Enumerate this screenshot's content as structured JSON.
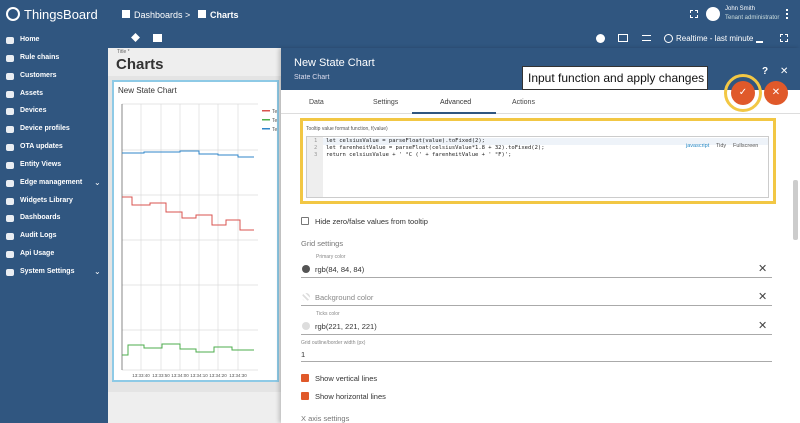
{
  "top_bar": {
    "logo": "ThingsBoard",
    "breadcrumb": [
      "Dashboards",
      ">",
      "Charts"
    ],
    "user_name": "John Smith",
    "user_role": "Tenant administrator"
  },
  "sidebar": {
    "items": [
      "Home",
      "Rule chains",
      "Customers",
      "Assets",
      "Devices",
      "Device profiles",
      "OTA updates",
      "Entity Views",
      "Edge management",
      "Widgets Library",
      "Dashboards",
      "Audit Logs",
      "Api Usage",
      "System Settings"
    ]
  },
  "toolbar": {
    "timewindow": "Realtime - last minute"
  },
  "dashboard": {
    "title_label": "Title *",
    "title": "Charts"
  },
  "widget": {
    "title": "New State Chart",
    "legend": [
      "Te",
      "Te",
      "Te"
    ],
    "x_labels": [
      "13:33:40",
      "13:33:50",
      "13:34:00",
      "13:34:10",
      "13:34:20",
      "13:34:30"
    ]
  },
  "panel": {
    "title": "New State Chart",
    "subtitle": "State Chart",
    "tabs": [
      "Data",
      "Settings",
      "Advanced",
      "Actions"
    ],
    "callout": "Input function and apply changes",
    "code_editor": {
      "label": "Tooltip value format function, f(value)",
      "line_numbers": [
        "1",
        "2",
        "3"
      ],
      "lines": [
        "let celsiusValue = parseFloat(value).toFixed(2);",
        "let farenheitValue = parseFloat(celsiusValue*1.8 + 32).toFixed(2);",
        "return celsiusValue + ' °C (' + farenheitValue + ' °F)';"
      ],
      "buttons": [
        "javascript",
        "Tidy",
        "Fullscreen"
      ]
    },
    "hide_zero": "Hide zero/false values from tooltip",
    "grid_settings": {
      "heading": "Grid settings",
      "primary_color_label": "Primary color",
      "primary_color": "rgb(84, 84, 84)",
      "background_color_label": "Background color",
      "ticks_color_label": "Ticks color",
      "ticks_color": "rgb(221, 221, 221)",
      "border_width_label": "Grid outline/border width (px)",
      "border_width": "1",
      "show_vertical": "Show vertical lines",
      "show_horizontal": "Show horizontal lines"
    },
    "x_axis_heading": "X axis settings"
  }
}
